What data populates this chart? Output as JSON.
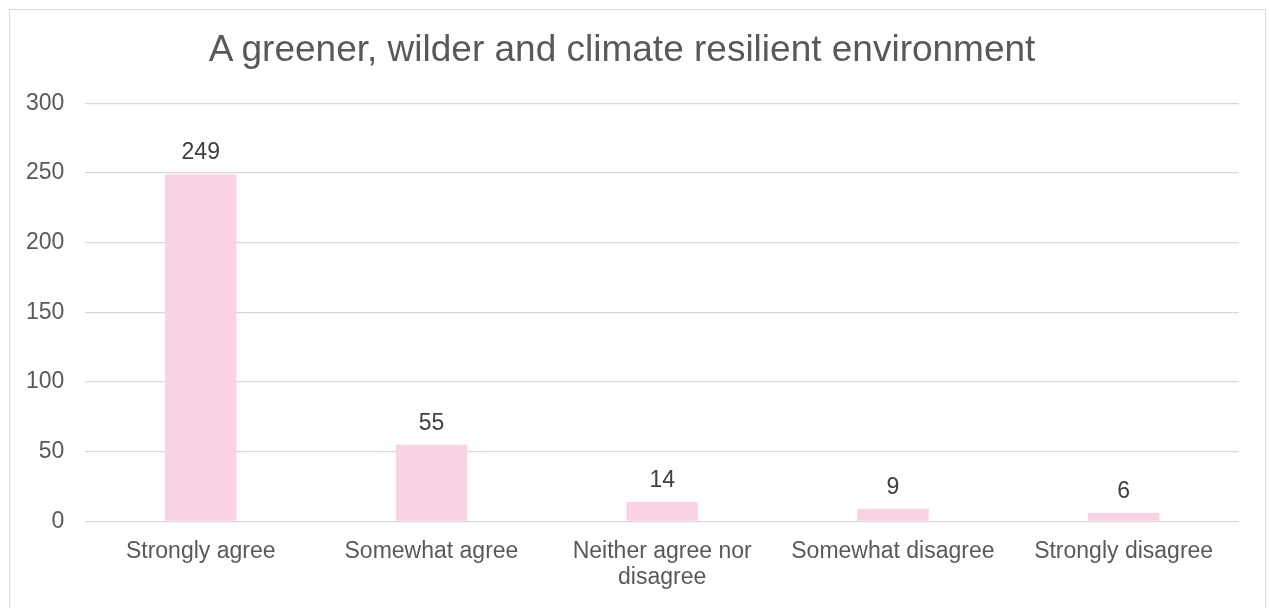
{
  "chart_data": {
    "type": "bar",
    "title": "A greener, wilder and climate resilient environment",
    "categories": [
      "Strongly agree",
      "Somewhat agree",
      "Neither agree nor disagree",
      "Somewhat disagree",
      "Strongly disagree"
    ],
    "values": [
      249,
      55,
      14,
      9,
      6
    ],
    "color": "#f9d3e4",
    "ylim": [
      0,
      300
    ],
    "yticks": [
      0,
      50,
      100,
      150,
      200,
      250,
      300
    ],
    "grid": "y",
    "data_labels": true
  }
}
